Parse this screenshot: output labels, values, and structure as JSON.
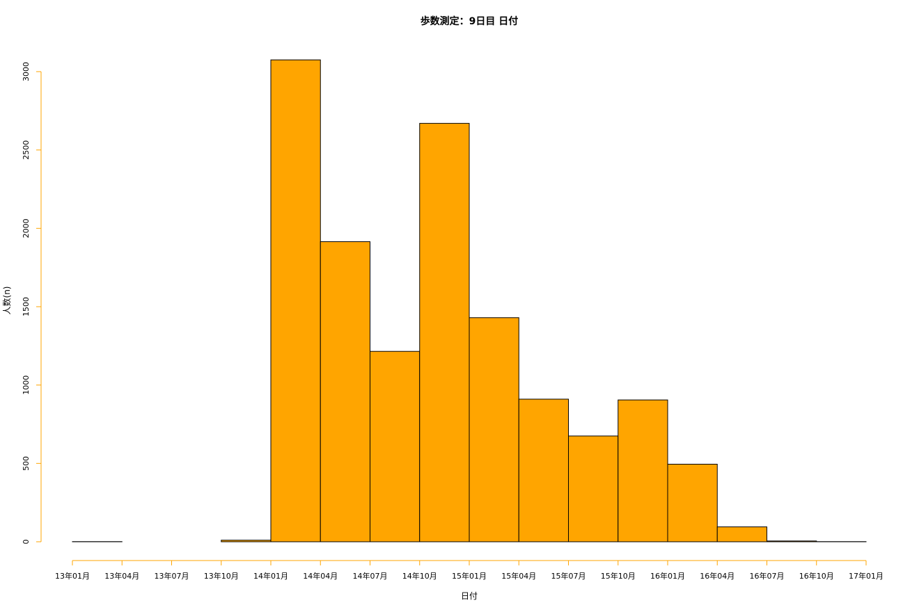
{
  "chart_data": {
    "type": "bar",
    "title": "歩数測定：9日目 日付",
    "xlabel": "日付",
    "ylabel": "人数(n)",
    "ylim": [
      0,
      3000
    ],
    "yticks": [
      0,
      500,
      1000,
      1500,
      2000,
      2500,
      3000
    ],
    "xticks": [
      "13年01月",
      "13年04月",
      "13年07月",
      "13年10月",
      "14年01月",
      "14年04月",
      "14年07月",
      "14年10月",
      "15年01月",
      "15年04月",
      "15年07月",
      "15年10月",
      "16年01月",
      "16年04月",
      "16年07月",
      "16年10月",
      "17年01月"
    ],
    "bins": [
      {
        "start": "13年01月",
        "end": "13年04月",
        "value": 1
      },
      {
        "start": "13年04月",
        "end": "13年07月",
        "value": 0
      },
      {
        "start": "13年07月",
        "end": "13年10月",
        "value": 0
      },
      {
        "start": "13年10月",
        "end": "14年01月",
        "value": 10
      },
      {
        "start": "14年01月",
        "end": "14年04月",
        "value": 3075
      },
      {
        "start": "14年04月",
        "end": "14年07月",
        "value": 1915
      },
      {
        "start": "14年07月",
        "end": "14年10月",
        "value": 1215
      },
      {
        "start": "14年10月",
        "end": "15年01月",
        "value": 2670
      },
      {
        "start": "15年01月",
        "end": "15年04月",
        "value": 1430
      },
      {
        "start": "15年04月",
        "end": "15年07月",
        "value": 910
      },
      {
        "start": "15年07月",
        "end": "15年10月",
        "value": 675
      },
      {
        "start": "15年10月",
        "end": "16年01月",
        "value": 905
      },
      {
        "start": "16年01月",
        "end": "16年04月",
        "value": 495
      },
      {
        "start": "16年04月",
        "end": "16年07月",
        "value": 95
      },
      {
        "start": "16年07月",
        "end": "16年10月",
        "value": 5
      },
      {
        "start": "16年10月",
        "end": "17年01月",
        "value": 1
      }
    ],
    "colors": {
      "bar_fill": "#FFA500",
      "bar_stroke": "#000000",
      "axis": "#FFA500"
    },
    "grid": false,
    "legend": "none"
  }
}
